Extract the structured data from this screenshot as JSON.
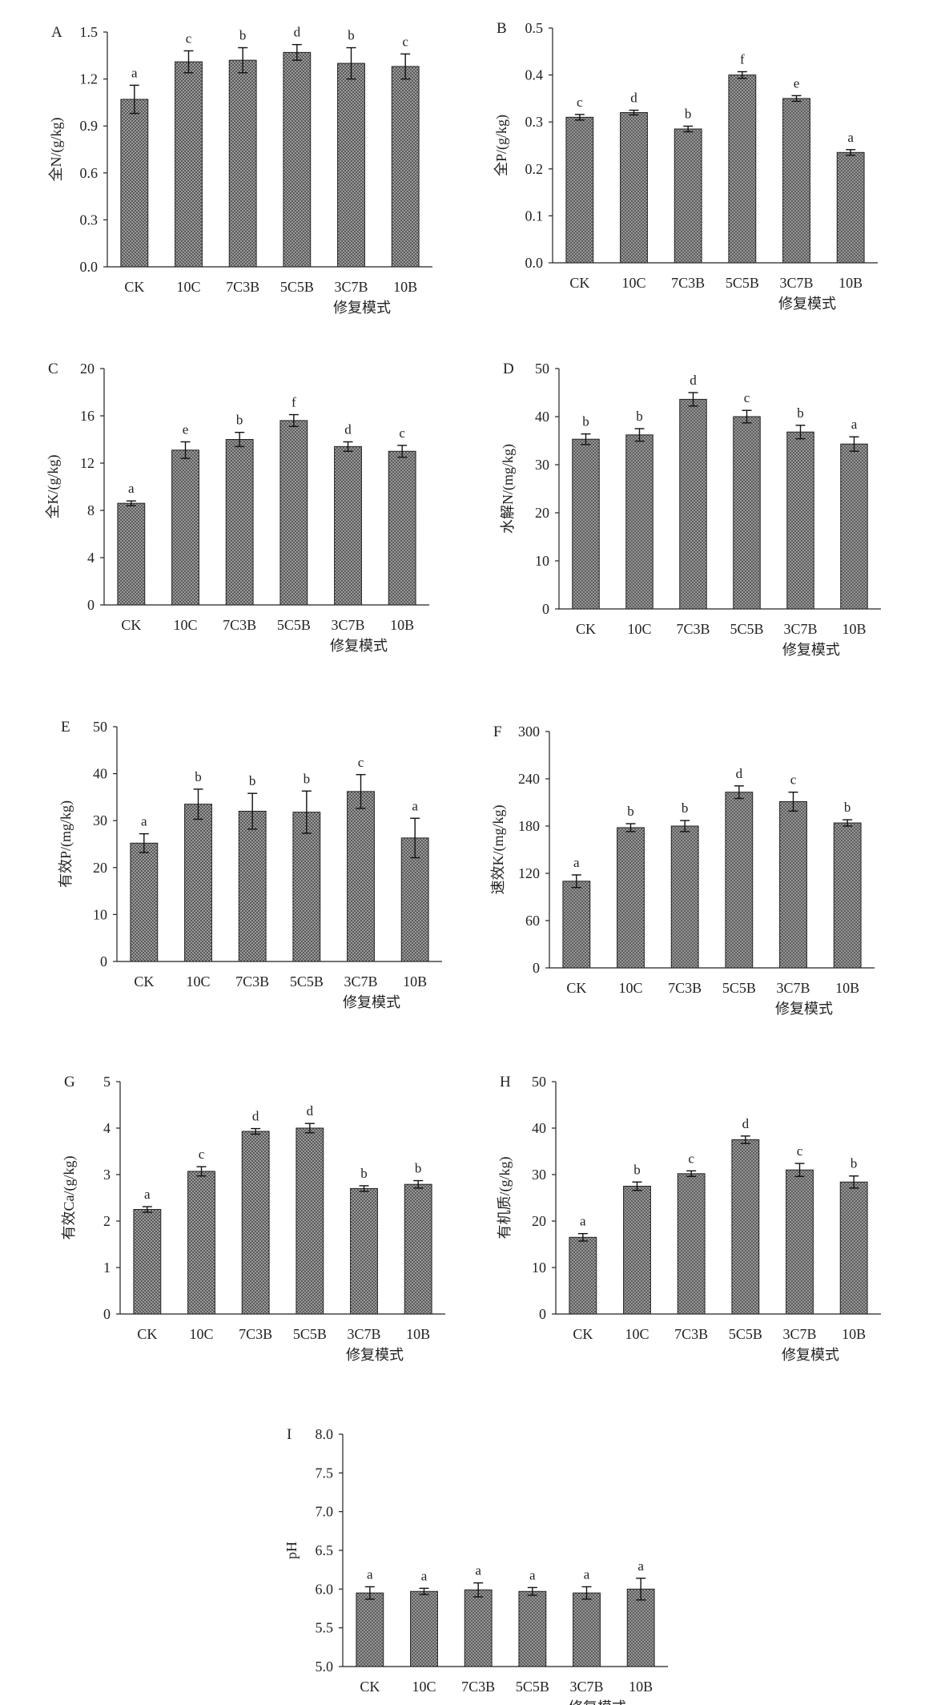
{
  "colors": {
    "bar_fill": "#5a5a5a",
    "bar_pattern": "#9a9a9a",
    "axis": "#222222",
    "background": "#ffffff"
  },
  "chart_data": [
    {
      "panel": "A",
      "type": "bar",
      "categories": [
        "CK",
        "10C",
        "7C3B",
        "5C5B",
        "3C7B",
        "10B"
      ],
      "values": [
        1.07,
        1.31,
        1.32,
        1.37,
        1.3,
        1.28
      ],
      "errors": [
        0.09,
        0.07,
        0.08,
        0.05,
        0.1,
        0.08
      ],
      "letters": [
        "a",
        "c",
        "b",
        "d",
        "b",
        "c"
      ],
      "ylabel": "全N/(g/kg)",
      "xlabel": "修复模式",
      "ylim": [
        0,
        1.5
      ],
      "yticks": [
        "0.0",
        "0.3",
        "0.6",
        "0.9",
        "1.2",
        "1.5"
      ]
    },
    {
      "panel": "B",
      "type": "bar",
      "categories": [
        "CK",
        "10C",
        "7C3B",
        "5C5B",
        "3C7B",
        "10B"
      ],
      "values": [
        0.31,
        0.32,
        0.285,
        0.4,
        0.35,
        0.235
      ],
      "errors": [
        0.006,
        0.005,
        0.006,
        0.007,
        0.006,
        0.006
      ],
      "letters": [
        "c",
        "d",
        "b",
        "f",
        "e",
        "a"
      ],
      "ylabel": "全P/(g/kg)",
      "xlabel": "修复模式",
      "ylim": [
        0,
        0.5
      ],
      "yticks": [
        "0.0",
        "0.1",
        "0.2",
        "0.3",
        "0.4",
        "0.5"
      ]
    },
    {
      "panel": "C",
      "type": "bar",
      "categories": [
        "CK",
        "10C",
        "7C3B",
        "5C5B",
        "3C7B",
        "10B"
      ],
      "values": [
        8.6,
        13.1,
        14.0,
        15.6,
        13.4,
        13.0
      ],
      "errors": [
        0.2,
        0.7,
        0.6,
        0.5,
        0.4,
        0.5
      ],
      "letters": [
        "a",
        "e",
        "b",
        "f",
        "d",
        "c"
      ],
      "ylabel": "全K/(g/kg)",
      "xlabel": "修复模式",
      "ylim": [
        0,
        20
      ],
      "yticks": [
        "0",
        "4",
        "8",
        "12",
        "16",
        "20"
      ]
    },
    {
      "panel": "D",
      "type": "bar",
      "categories": [
        "CK",
        "10C",
        "7C3B",
        "5C5B",
        "3C7B",
        "10B"
      ],
      "values": [
        35.3,
        36.2,
        43.6,
        40.0,
        36.8,
        34.3
      ],
      "errors": [
        1.1,
        1.3,
        1.4,
        1.3,
        1.4,
        1.5
      ],
      "letters": [
        "b",
        "b",
        "d",
        "c",
        "b",
        "a"
      ],
      "ylabel": "水解N/(mg/kg)",
      "xlabel": "修复模式",
      "ylim": [
        0,
        50
      ],
      "yticks": [
        "0",
        "10",
        "20",
        "30",
        "40",
        "50"
      ]
    },
    {
      "panel": "E",
      "type": "bar",
      "categories": [
        "CK",
        "10C",
        "7C3B",
        "5C5B",
        "3C7B",
        "10B"
      ],
      "values": [
        25.2,
        33.5,
        32.0,
        31.8,
        36.2,
        26.3
      ],
      "errors": [
        2.0,
        3.2,
        3.8,
        4.5,
        3.6,
        4.2
      ],
      "letters": [
        "a",
        "b",
        "b",
        "b",
        "c",
        "a"
      ],
      "ylabel": "有效P/(mg/kg)",
      "xlabel": "修复模式",
      "ylim": [
        0,
        50
      ],
      "yticks": [
        "0",
        "10",
        "20",
        "30",
        "40",
        "50"
      ]
    },
    {
      "panel": "F",
      "type": "bar",
      "categories": [
        "CK",
        "10C",
        "7C3B",
        "5C5B",
        "3C7B",
        "10B"
      ],
      "values": [
        110,
        178,
        180,
        223,
        211,
        184
      ],
      "errors": [
        8,
        5,
        7,
        8,
        12,
        4
      ],
      "letters": [
        "a",
        "b",
        "b",
        "d",
        "c",
        "b"
      ],
      "ylabel": "速效K/(mg/kg)",
      "xlabel": "修复模式",
      "ylim": [
        0,
        300
      ],
      "yticks": [
        "0",
        "60",
        "120",
        "180",
        "240",
        "300"
      ]
    },
    {
      "panel": "G",
      "type": "bar",
      "categories": [
        "CK",
        "10C",
        "7C3B",
        "5C5B",
        "3C7B",
        "10B"
      ],
      "values": [
        2.25,
        3.07,
        3.93,
        4.0,
        2.7,
        2.79
      ],
      "errors": [
        0.06,
        0.1,
        0.06,
        0.1,
        0.06,
        0.08
      ],
      "letters": [
        "a",
        "c",
        "d",
        "d",
        "b",
        "b"
      ],
      "ylabel": "有效Ca/(g/kg)",
      "xlabel": "修复模式",
      "ylim": [
        0,
        5
      ],
      "yticks": [
        "0",
        "1",
        "2",
        "3",
        "4",
        "5"
      ]
    },
    {
      "panel": "H",
      "type": "bar",
      "categories": [
        "CK",
        "10C",
        "7C3B",
        "5C5B",
        "3C7B",
        "10B"
      ],
      "values": [
        16.5,
        27.5,
        30.2,
        37.5,
        31.0,
        28.4
      ],
      "errors": [
        0.8,
        0.9,
        0.6,
        0.8,
        1.4,
        1.3
      ],
      "letters": [
        "a",
        "b",
        "c",
        "d",
        "c",
        "b"
      ],
      "ylabel": "有机质/(g/kg)",
      "xlabel": "修复模式",
      "ylim": [
        0,
        50
      ],
      "yticks": [
        "0",
        "10",
        "20",
        "30",
        "40",
        "50"
      ]
    },
    {
      "panel": "I",
      "type": "bar",
      "categories": [
        "CK",
        "10C",
        "7C3B",
        "5C5B",
        "3C7B",
        "10B"
      ],
      "values": [
        5.95,
        5.97,
        5.99,
        5.97,
        5.95,
        6.0
      ],
      "errors": [
        0.08,
        0.04,
        0.09,
        0.05,
        0.08,
        0.14
      ],
      "letters": [
        "a",
        "a",
        "a",
        "a",
        "a",
        "a"
      ],
      "ylabel": "pH",
      "xlabel": "修复模式",
      "ylim": [
        5.0,
        8.0
      ],
      "yticks": [
        "5.0",
        "5.5",
        "6.0",
        "6.5",
        "7.0",
        "7.5",
        "8.0"
      ]
    }
  ]
}
